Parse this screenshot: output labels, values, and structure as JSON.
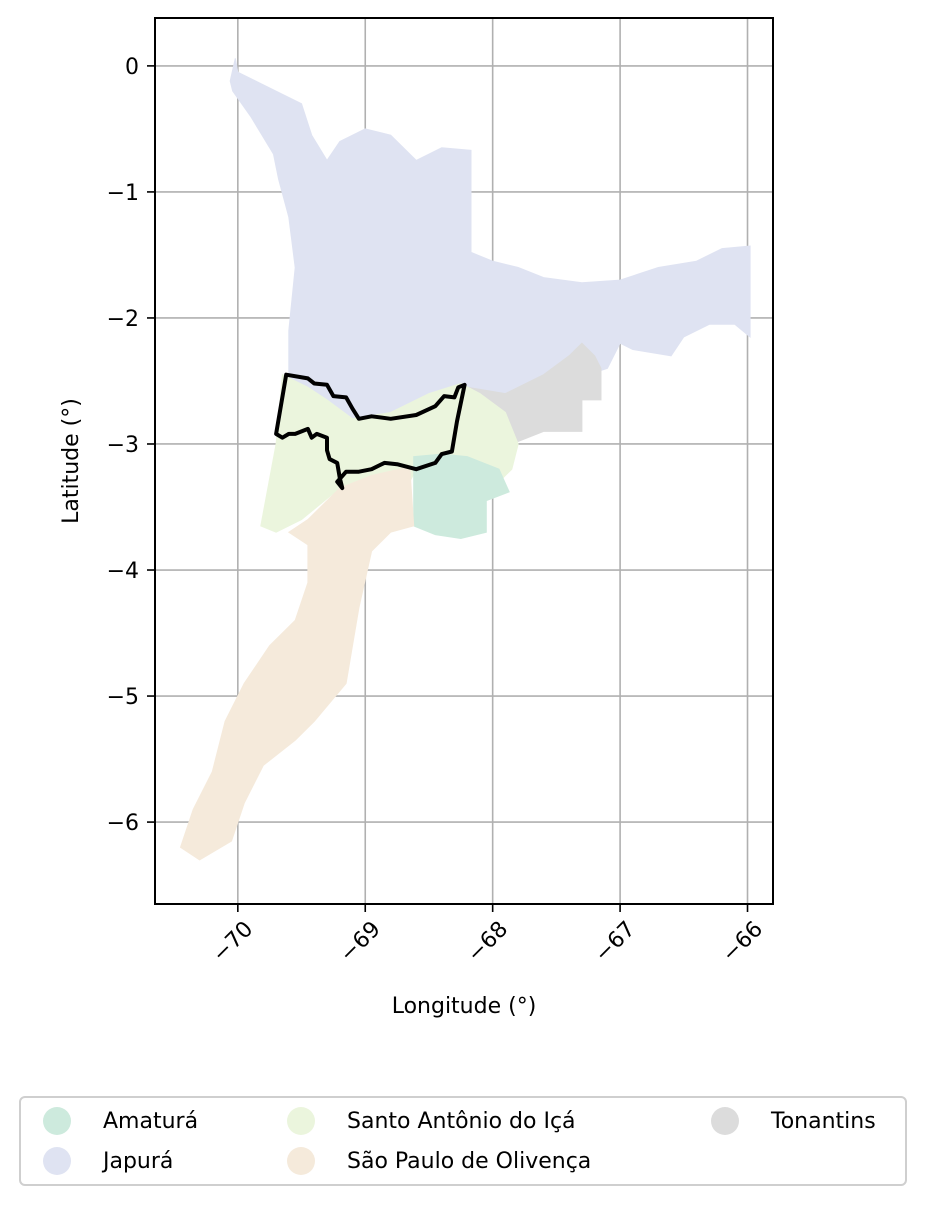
{
  "chart_data": {
    "type": "map",
    "title": "",
    "xlabel": "Longitude (°)",
    "ylabel": "Latitude (°)",
    "xlim": [
      -70.65,
      -65.8
    ],
    "ylim": [
      -6.65,
      0.38
    ],
    "xticks": [
      -70,
      -69,
      -68,
      -67,
      -66
    ],
    "xtick_labels": [
      "−70",
      "−69",
      "−68",
      "−67",
      "−66"
    ],
    "yticks": [
      0,
      -1,
      -2,
      -3,
      -4,
      -5,
      -6
    ],
    "ytick_labels": [
      "0",
      "−1",
      "−2",
      "−3",
      "−4",
      "−5",
      "−6"
    ],
    "xtick_rotation_deg": 45,
    "grid": true,
    "legend_location": "bottom, below plot, 3 columns",
    "regions": [
      {
        "name": "Japurá",
        "color": "#dfe3f2",
        "outline": [
          [
            -70.02,
            0.06
          ],
          [
            -70.0,
            -0.05
          ],
          [
            -69.8,
            -0.15
          ],
          [
            -69.6,
            -0.25
          ],
          [
            -69.5,
            -0.3
          ],
          [
            -69.42,
            -0.55
          ],
          [
            -69.3,
            -0.75
          ],
          [
            -69.2,
            -0.6
          ],
          [
            -69.0,
            -0.5
          ],
          [
            -68.8,
            -0.55
          ],
          [
            -68.6,
            -0.75
          ],
          [
            -68.4,
            -0.65
          ],
          [
            -68.17,
            -0.67
          ],
          [
            -68.17,
            -1.48
          ],
          [
            -68.0,
            -1.55
          ],
          [
            -67.8,
            -1.6
          ],
          [
            -67.6,
            -1.68
          ],
          [
            -67.3,
            -1.72
          ],
          [
            -67.0,
            -1.7
          ],
          [
            -66.7,
            -1.6
          ],
          [
            -66.4,
            -1.55
          ],
          [
            -66.2,
            -1.45
          ],
          [
            -65.98,
            -1.43
          ],
          [
            -65.98,
            -2.15
          ],
          [
            -66.1,
            -2.05
          ],
          [
            -66.3,
            -2.05
          ],
          [
            -66.5,
            -2.15
          ],
          [
            -66.6,
            -2.3
          ],
          [
            -66.9,
            -2.25
          ],
          [
            -67.0,
            -2.2
          ],
          [
            -67.1,
            -2.4
          ],
          [
            -67.4,
            -2.5
          ],
          [
            -67.6,
            -2.6
          ],
          [
            -67.9,
            -2.75
          ],
          [
            -68.3,
            -2.9
          ],
          [
            -68.8,
            -2.85
          ],
          [
            -69.5,
            -2.75
          ],
          [
            -69.6,
            -2.5
          ],
          [
            -69.6,
            -2.1
          ],
          [
            -69.55,
            -1.6
          ],
          [
            -69.6,
            -1.2
          ],
          [
            -69.68,
            -0.9
          ],
          [
            -69.72,
            -0.7
          ],
          [
            -69.9,
            -0.4
          ],
          [
            -70.04,
            -0.2
          ],
          [
            -70.06,
            -0.12
          ]
        ]
      },
      {
        "name": "Tonantins",
        "color": "#dcdcdc",
        "outline": [
          [
            -68.2,
            -2.55
          ],
          [
            -67.9,
            -2.6
          ],
          [
            -67.6,
            -2.45
          ],
          [
            -67.4,
            -2.3
          ],
          [
            -67.3,
            -2.2
          ],
          [
            -67.2,
            -2.3
          ],
          [
            -67.15,
            -2.4
          ],
          [
            -67.15,
            -2.65
          ],
          [
            -67.3,
            -2.65
          ],
          [
            -67.3,
            -2.9
          ],
          [
            -67.6,
            -2.9
          ],
          [
            -67.85,
            -3.0
          ],
          [
            -68.3,
            -2.9
          ],
          [
            -68.6,
            -2.85
          ],
          [
            -68.45,
            -2.7
          ],
          [
            -68.3,
            -2.62
          ]
        ]
      },
      {
        "name": "Santo Antônio do Içá",
        "color": "#ebf5dd",
        "outline": [
          [
            -69.65,
            -2.45
          ],
          [
            -69.45,
            -2.55
          ],
          [
            -69.3,
            -2.65
          ],
          [
            -69.1,
            -2.8
          ],
          [
            -68.8,
            -2.75
          ],
          [
            -68.5,
            -2.6
          ],
          [
            -68.25,
            -2.52
          ],
          [
            -68.1,
            -2.6
          ],
          [
            -67.9,
            -2.75
          ],
          [
            -67.8,
            -3.0
          ],
          [
            -67.85,
            -3.2
          ],
          [
            -68.0,
            -3.35
          ],
          [
            -68.2,
            -3.3
          ],
          [
            -68.6,
            -3.2
          ],
          [
            -68.65,
            -3.3
          ],
          [
            -69.0,
            -3.3
          ],
          [
            -69.2,
            -3.35
          ],
          [
            -69.5,
            -3.6
          ],
          [
            -69.7,
            -3.7
          ],
          [
            -69.82,
            -3.65
          ],
          [
            -69.7,
            -3.0
          ]
        ]
      },
      {
        "name": "Amaturá",
        "color": "#cdeadd",
        "outline": [
          [
            -68.62,
            -3.1
          ],
          [
            -68.4,
            -3.08
          ],
          [
            -68.2,
            -3.1
          ],
          [
            -67.95,
            -3.2
          ],
          [
            -67.87,
            -3.38
          ],
          [
            -68.05,
            -3.45
          ],
          [
            -68.05,
            -3.7
          ],
          [
            -68.25,
            -3.75
          ],
          [
            -68.45,
            -3.72
          ],
          [
            -68.62,
            -3.65
          ]
        ]
      },
      {
        "name": "São Paulo de Olivença",
        "color": "#f5eadb",
        "outline": [
          [
            -69.2,
            -3.35
          ],
          [
            -68.95,
            -3.25
          ],
          [
            -68.65,
            -3.18
          ],
          [
            -68.62,
            -3.65
          ],
          [
            -68.8,
            -3.7
          ],
          [
            -68.95,
            -3.85
          ],
          [
            -69.05,
            -4.3
          ],
          [
            -69.1,
            -4.6
          ],
          [
            -69.15,
            -4.9
          ],
          [
            -69.4,
            -5.2
          ],
          [
            -69.55,
            -5.35
          ],
          [
            -69.8,
            -5.55
          ],
          [
            -69.95,
            -5.85
          ],
          [
            -70.05,
            -6.15
          ],
          [
            -70.3,
            -6.3
          ],
          [
            -70.45,
            -6.2
          ],
          [
            -70.35,
            -5.9
          ],
          [
            -70.2,
            -5.6
          ],
          [
            -70.1,
            -5.2
          ],
          [
            -69.95,
            -4.9
          ],
          [
            -69.75,
            -4.6
          ],
          [
            -69.55,
            -4.4
          ],
          [
            -69.45,
            -4.1
          ],
          [
            -69.45,
            -3.8
          ],
          [
            -69.6,
            -3.7
          ],
          [
            -69.45,
            -3.6
          ]
        ]
      }
    ],
    "highlight": {
      "name": "Santo Antônio do Içá",
      "stroke": "#000000",
      "outline": [
        [
          -69.62,
          -2.45
        ],
        [
          -69.45,
          -2.48
        ],
        [
          -69.4,
          -2.52
        ],
        [
          -69.3,
          -2.53
        ],
        [
          -69.25,
          -2.62
        ],
        [
          -69.15,
          -2.63
        ],
        [
          -69.1,
          -2.72
        ],
        [
          -69.05,
          -2.8
        ],
        [
          -68.95,
          -2.78
        ],
        [
          -68.8,
          -2.8
        ],
        [
          -68.6,
          -2.77
        ],
        [
          -68.45,
          -2.7
        ],
        [
          -68.38,
          -2.62
        ],
        [
          -68.3,
          -2.63
        ],
        [
          -68.27,
          -2.55
        ],
        [
          -68.22,
          -2.53
        ],
        [
          -68.28,
          -2.82
        ],
        [
          -68.32,
          -3.06
        ],
        [
          -68.4,
          -3.08
        ],
        [
          -68.45,
          -3.15
        ],
        [
          -68.6,
          -3.2
        ],
        [
          -68.75,
          -3.16
        ],
        [
          -68.85,
          -3.15
        ],
        [
          -68.95,
          -3.2
        ],
        [
          -69.05,
          -3.22
        ],
        [
          -69.15,
          -3.22
        ],
        [
          -69.22,
          -3.3
        ],
        [
          -69.18,
          -3.35
        ],
        [
          -69.2,
          -3.27
        ],
        [
          -69.22,
          -3.15
        ],
        [
          -69.28,
          -3.12
        ],
        [
          -69.3,
          -3.05
        ],
        [
          -69.3,
          -2.95
        ],
        [
          -69.38,
          -2.92
        ],
        [
          -69.42,
          -2.95
        ],
        [
          -69.45,
          -2.88
        ],
        [
          -69.55,
          -2.92
        ],
        [
          -69.6,
          -2.92
        ],
        [
          -69.65,
          -2.95
        ],
        [
          -69.7,
          -2.92
        ]
      ]
    },
    "legend": [
      {
        "name": "Amaturá",
        "color": "#cdeadd"
      },
      {
        "name": "Japurá",
        "color": "#dfe3f2"
      },
      {
        "name": "Santo Antônio do Içá",
        "color": "#ebf5dd"
      },
      {
        "name": "São Paulo de Olivença",
        "color": "#f5eadb"
      },
      {
        "name": "Tonantins",
        "color": "#dcdcdc"
      }
    ]
  }
}
